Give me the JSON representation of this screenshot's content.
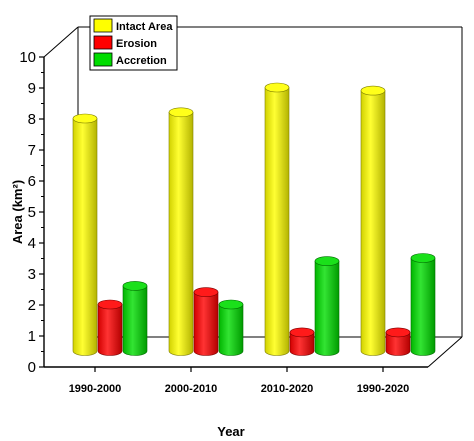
{
  "chart_data": {
    "type": "bar",
    "title": "",
    "xlabel": "Year",
    "ylabel": "Area (km²)",
    "ylim": [
      0,
      10
    ],
    "yticks": [
      "0",
      "1",
      "2",
      "3",
      "4",
      "5",
      "6",
      "7",
      "8",
      "9",
      "10"
    ],
    "categories": [
      "1990-2000",
      "2000-2010",
      "2010-2020",
      "1990-2020"
    ],
    "series": [
      {
        "name": "Intact Area",
        "color": "#ffff00",
        "values": [
          7.5,
          7.7,
          8.5,
          8.4
        ]
      },
      {
        "name": "Erosion",
        "color": "#ff0000",
        "values": [
          1.5,
          1.9,
          0.6,
          0.6
        ]
      },
      {
        "name": "Accretion",
        "color": "#00dd00",
        "values": [
          2.1,
          1.5,
          2.9,
          3.0
        ]
      }
    ],
    "legend_position": "top-left",
    "grid": false,
    "style": "3d-cylinder"
  }
}
